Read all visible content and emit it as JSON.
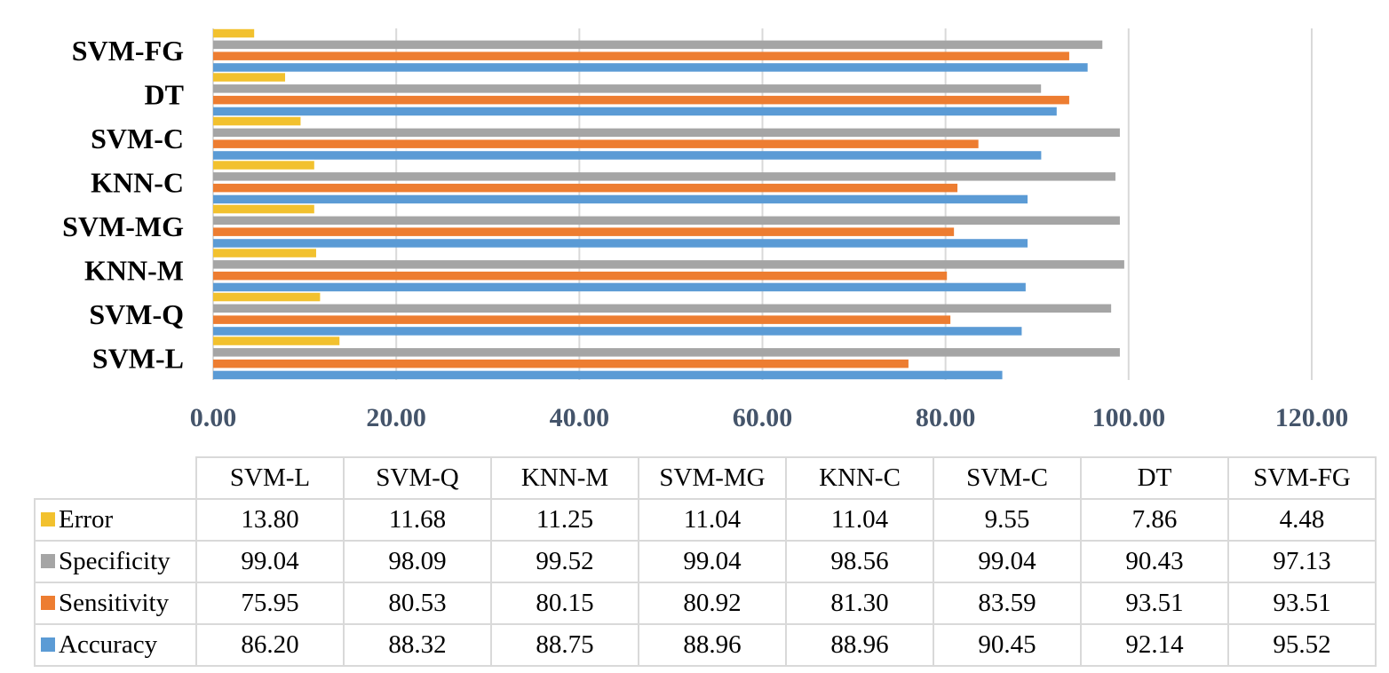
{
  "chart_data": {
    "type": "bar",
    "orientation": "horizontal",
    "categories": [
      "SVM-L",
      "SVM-Q",
      "KNN-M",
      "SVM-MG",
      "KNN-C",
      "SVM-C",
      "DT",
      "SVM-FG"
    ],
    "series": [
      {
        "name": "Error",
        "color": "#f2c12e",
        "values": [
          13.8,
          11.68,
          11.25,
          11.04,
          11.04,
          9.55,
          7.86,
          4.48
        ],
        "labels": [
          "13.80",
          "11.68",
          "11.25",
          "11.04",
          "11.04",
          "9.55",
          "7.86",
          "4.48"
        ]
      },
      {
        "name": "Specificity",
        "color": "#a5a5a5",
        "values": [
          99.04,
          98.09,
          99.52,
          99.04,
          98.56,
          99.04,
          90.43,
          97.13
        ],
        "labels": [
          "99.04",
          "98.09",
          "99.52",
          "99.04",
          "98.56",
          "99.04",
          "90.43",
          "97.13"
        ]
      },
      {
        "name": "Sensitivity",
        "color": "#ed7d31",
        "values": [
          75.95,
          80.53,
          80.15,
          80.92,
          81.3,
          83.59,
          93.51,
          93.51
        ],
        "labels": [
          "75.95",
          "80.53",
          "80.15",
          "80.92",
          "81.30",
          "83.59",
          "93.51",
          "93.51"
        ]
      },
      {
        "name": "Accuracy",
        "color": "#5b9bd5",
        "values": [
          86.2,
          88.32,
          88.75,
          88.96,
          88.96,
          90.45,
          92.14,
          95.52
        ],
        "labels": [
          "86.20",
          "88.32",
          "88.75",
          "88.96",
          "88.96",
          "90.45",
          "92.14",
          "95.52"
        ]
      }
    ],
    "xlim": [
      0,
      120
    ],
    "xticks": [
      "0.00",
      "20.00",
      "40.00",
      "60.00",
      "80.00",
      "100.00",
      "120.00"
    ],
    "grid": true,
    "legend": "data-table-below"
  }
}
